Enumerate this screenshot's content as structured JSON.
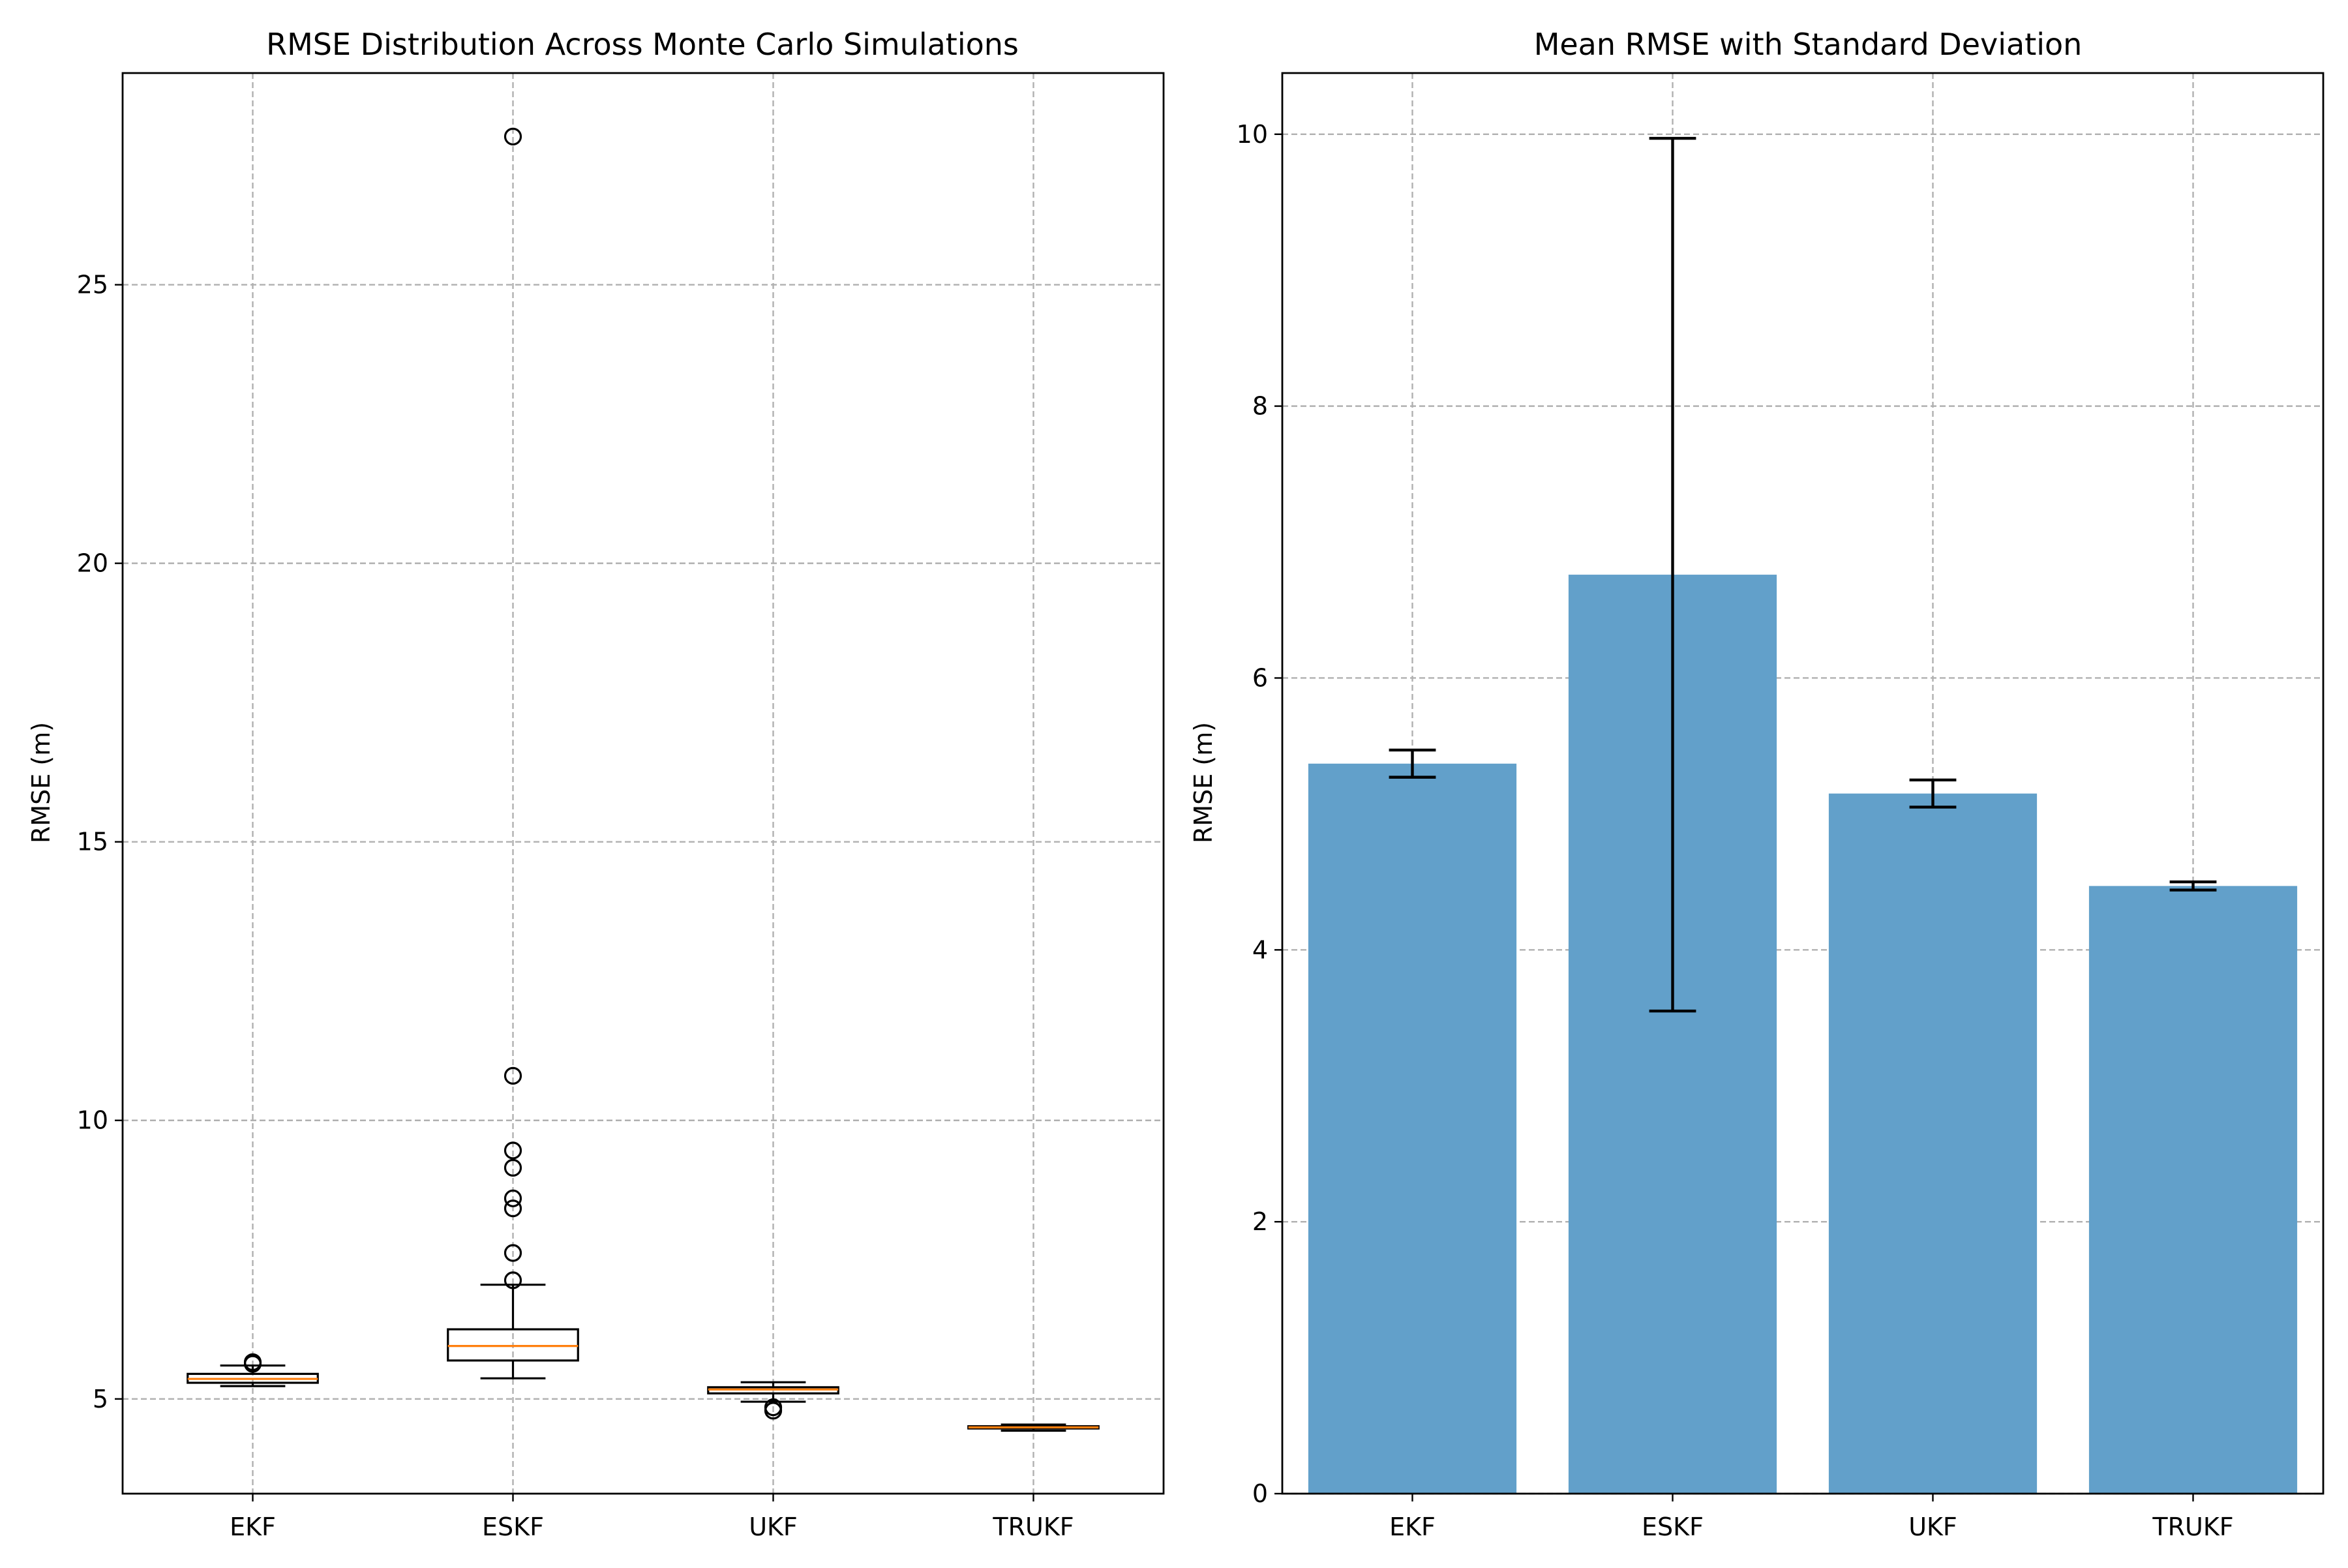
{
  "colors": {
    "bar": "#62a0ca",
    "median": "#ff7f0e",
    "box_edge": "#000000",
    "grid": "#b0b0b0"
  },
  "chart_data": [
    {
      "type": "box",
      "title": "RMSE Distribution Across Monte Carlo Simulations",
      "xlabel": "",
      "ylabel": "RMSE (m)",
      "ylim": [
        3.3,
        28.8
      ],
      "grid": true,
      "yticks": [
        5,
        10,
        15,
        20,
        25
      ],
      "categories": [
        "EKF",
        "ESKF",
        "UKF",
        "TRUKF"
      ],
      "boxes": [
        {
          "whisker_low": 5.23,
          "q1": 5.29,
          "median": 5.36,
          "q3": 5.45,
          "whisker_high": 5.6,
          "outliers": [
            5.63,
            5.66
          ]
        },
        {
          "whisker_low": 5.37,
          "q1": 5.69,
          "median": 5.95,
          "q3": 6.25,
          "whisker_high": 7.05,
          "outliers": [
            7.13,
            7.62,
            8.42,
            8.6,
            9.15,
            9.46,
            10.8,
            27.66
          ]
        },
        {
          "whisker_low": 4.95,
          "q1": 5.1,
          "median": 5.17,
          "q3": 5.21,
          "whisker_high": 5.3,
          "outliers": [
            4.85,
            4.79
          ]
        },
        {
          "whisker_low": 4.43,
          "q1": 4.47,
          "median": 4.49,
          "q3": 4.51,
          "whisker_high": 4.54,
          "outliers": []
        }
      ]
    },
    {
      "type": "bar",
      "title": "Mean RMSE with Standard Deviation",
      "xlabel": "",
      "ylabel": "RMSE (m)",
      "ylim": [
        0,
        10.45
      ],
      "grid": true,
      "yticks": [
        0,
        2,
        4,
        6,
        8,
        10
      ],
      "categories": [
        "EKF",
        "ESKF",
        "UKF",
        "TRUKF"
      ],
      "values": [
        5.37,
        6.76,
        5.15,
        4.47
      ],
      "errors": [
        0.1,
        3.21,
        0.1,
        0.03
      ]
    }
  ]
}
